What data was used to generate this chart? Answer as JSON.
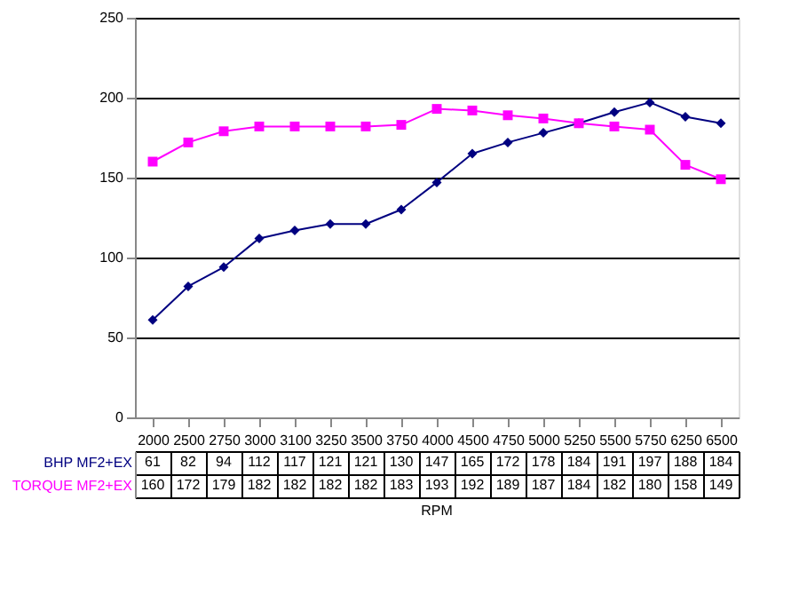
{
  "chart_data": {
    "type": "line",
    "xlabel": "RPM",
    "categories": [
      "2000",
      "2500",
      "2750",
      "3000",
      "3100",
      "3250",
      "3500",
      "3750",
      "4000",
      "4500",
      "4750",
      "5000",
      "5250",
      "5500",
      "5750",
      "6250",
      "6500"
    ],
    "series": [
      {
        "name": "BHP MF2+EX",
        "color": "#000080",
        "marker": "diamond",
        "values": [
          61,
          82,
          94,
          112,
          117,
          121,
          121,
          130,
          147,
          165,
          172,
          178,
          184,
          191,
          197,
          188,
          184
        ]
      },
      {
        "name": "TORQUE MF2+EX",
        "color": "#ff00ff",
        "marker": "square",
        "values": [
          160,
          172,
          179,
          182,
          182,
          182,
          182,
          183,
          193,
          192,
          189,
          187,
          184,
          182,
          180,
          158,
          149
        ]
      }
    ],
    "ylim": [
      0,
      250
    ],
    "yticks": [
      0,
      50,
      100,
      150,
      200,
      250
    ],
    "grid": "y",
    "data_labels": true
  }
}
